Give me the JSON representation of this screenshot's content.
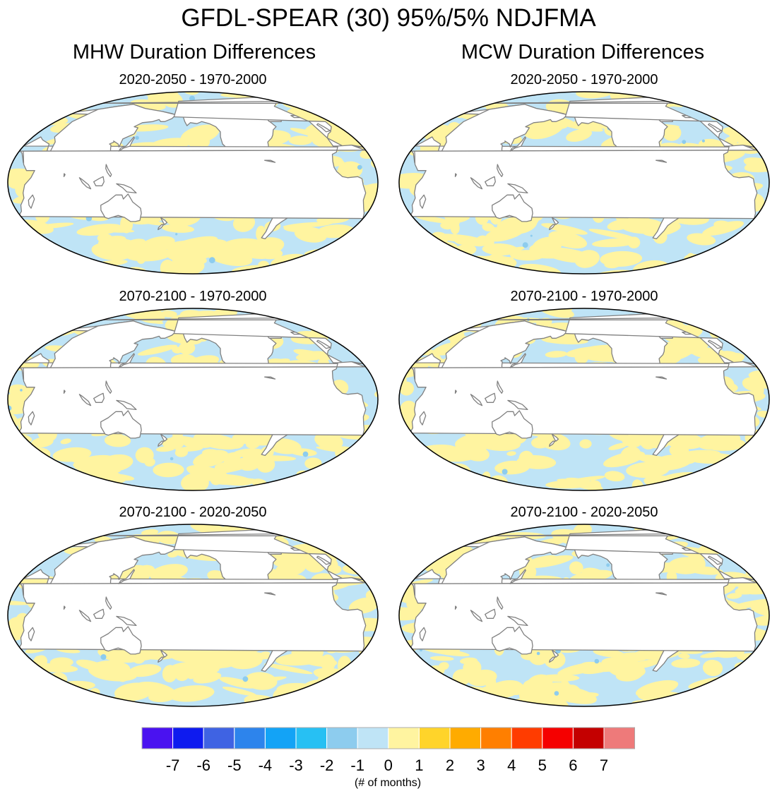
{
  "title": "GFDL-SPEAR (30) 95%/5% NDJFMA",
  "columns": [
    {
      "title": "MHW Duration Differences",
      "panels": [
        {
          "subtitle": "2020-2050 - 1970-2000",
          "seed": 11
        },
        {
          "subtitle": "2070-2100 - 1970-2000",
          "seed": 23
        },
        {
          "subtitle": "2070-2100 - 2020-2050",
          "seed": 37
        }
      ]
    },
    {
      "title": "MCW Duration Differences",
      "panels": [
        {
          "subtitle": "2020-2050 - 1970-2000",
          "seed": 53
        },
        {
          "subtitle": "2070-2100 - 1970-2000",
          "seed": 71
        },
        {
          "subtitle": "2070-2100 - 2020-2050",
          "seed": 97
        }
      ]
    }
  ],
  "colorbar": {
    "colors": [
      "#4a12f0",
      "#0e1bef",
      "#3f63e3",
      "#2d84ec",
      "#13a3f6",
      "#27c0f3",
      "#8dccee",
      "#bfe4f6",
      "#fff4a0",
      "#ffd42a",
      "#ffab00",
      "#ff7f00",
      "#ff3c00",
      "#f50000",
      "#c40000",
      "#ee7a7a"
    ],
    "tick_labels": [
      "-7",
      "-6",
      "-5",
      "-4",
      "-3",
      "-2",
      "-1",
      "0",
      "1",
      "2",
      "3",
      "4",
      "5",
      "6",
      "7"
    ],
    "label": "(# of months)"
  },
  "map_colors": {
    "ocean_positive": "#fff4a0",
    "ocean_negative": "#bfe4f6",
    "land": "#ffffff",
    "coastline": "#808080",
    "border": "#000000"
  }
}
